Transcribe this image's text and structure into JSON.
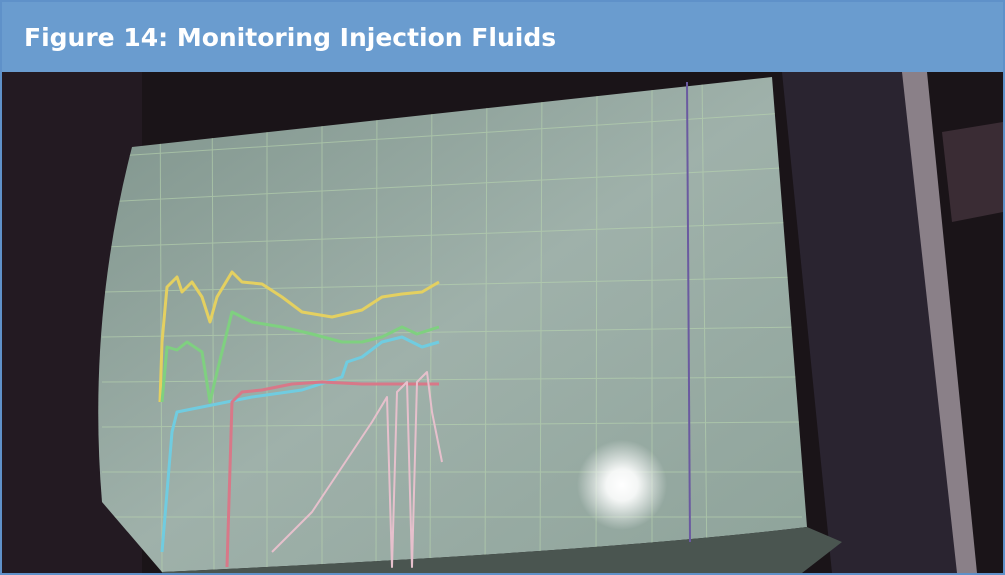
{
  "figure": {
    "title": "Figure 14: Monitoring Injection Fluids"
  }
}
